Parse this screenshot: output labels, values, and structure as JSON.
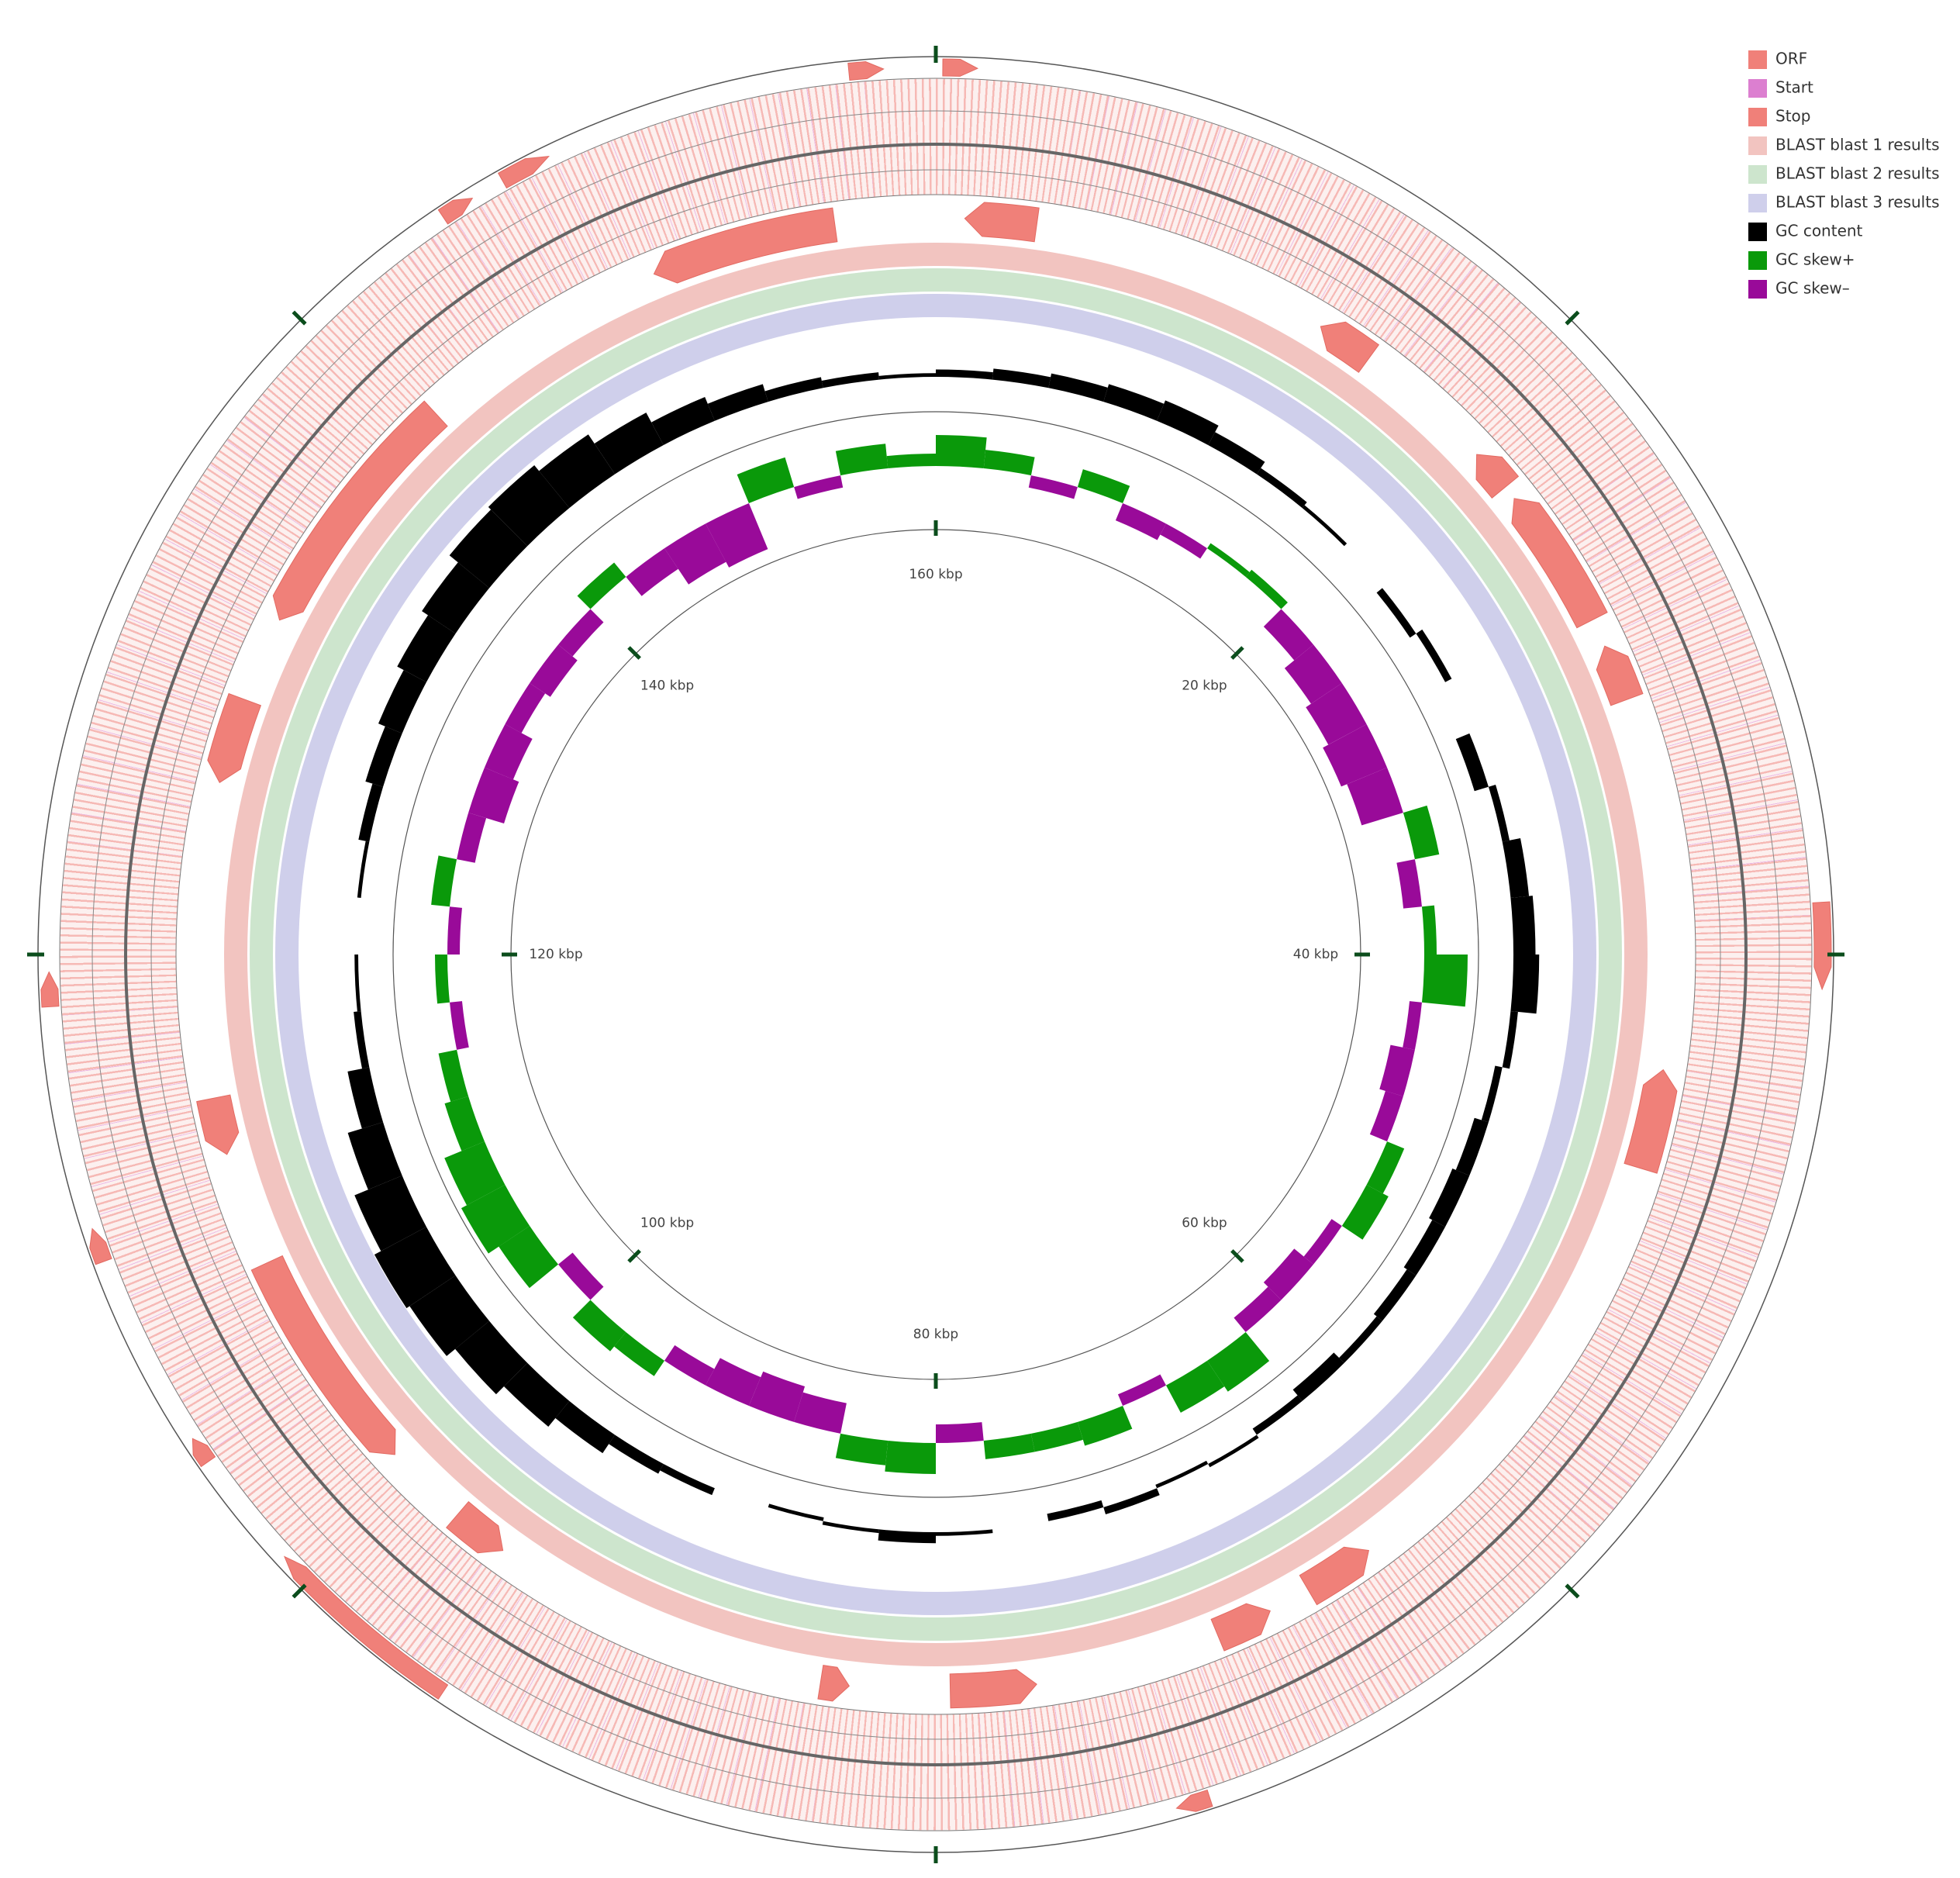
{
  "chart_data": {
    "type": "circular-genome",
    "xlim": [
      0,
      160
    ],
    "xticks": [
      {
        "value": 20,
        "label": "20 kbp"
      },
      {
        "value": 40,
        "label": "40 kbp"
      },
      {
        "value": 60,
        "label": "60 kbp"
      },
      {
        "value": 80,
        "label": "80 kbp"
      },
      {
        "value": 100,
        "label": "100 kbp"
      },
      {
        "value": 120,
        "label": "120 kbp"
      },
      {
        "value": 140,
        "label": "140 kbp"
      },
      {
        "value": 160,
        "label": "160 kbp"
      }
    ],
    "legend": [
      {
        "name": "ORF",
        "color": "#f08079"
      },
      {
        "name": "Start",
        "color": "#dc7fd0"
      },
      {
        "name": "Stop",
        "color": "#f08079"
      },
      {
        "name": "BLAST blast 1 results",
        "color": "#f2c4c0"
      },
      {
        "name": "BLAST blast 2 results",
        "color": "#cde5cd"
      },
      {
        "name": "BLAST blast 3 results",
        "color": "#cfcfeb"
      },
      {
        "name": "GC content",
        "color": "#000000"
      },
      {
        "name": "GC skew+",
        "color": "#0a990a"
      },
      {
        "name": "GC skew–",
        "color": "#990a99"
      }
    ],
    "x": [
      0,
      2.5,
      5,
      7.5,
      10,
      12.5,
      15,
      17.5,
      20,
      22.5,
      25,
      27.5,
      30,
      32.5,
      35,
      37.5,
      40,
      42.5,
      45,
      47.5,
      50,
      52.5,
      55,
      57.5,
      60,
      62.5,
      65,
      67.5,
      70,
      72.5,
      75,
      77.5,
      80,
      82.5,
      85,
      87.5,
      90,
      92.5,
      95,
      97.5,
      100,
      102.5,
      105,
      107.5,
      110,
      112.5,
      115,
      117.5,
      120,
      122.5,
      125,
      127.5,
      130,
      132.5,
      135,
      137.5,
      140,
      142.5,
      145,
      147.5,
      150,
      152.5,
      155,
      157.5
    ],
    "gc_content": [
      0.1,
      0.15,
      0.2,
      0.25,
      0.3,
      0.2,
      0.1,
      0.05,
      0,
      -0.1,
      0.1,
      0,
      -0.2,
      0.1,
      0.25,
      0.3,
      0.35,
      0.1,
      -0.1,
      -0.2,
      -0.25,
      -0.2,
      -0.15,
      -0.1,
      -0.2,
      -0.1,
      0.05,
      -0.05,
      0.1,
      -0.1,
      0,
      0.05,
      0.15,
      0.05,
      -0.05,
      0,
      0.1,
      0.15,
      0.3,
      0.45,
      0.6,
      0.75,
      0.8,
      0.7,
      0.5,
      0.3,
      0.1,
      0.05,
      0,
      0.05,
      0.15,
      0.25,
      0.35,
      0.45,
      0.55,
      0.7,
      0.75,
      0.65,
      0.5,
      0.35,
      0.25,
      0.15,
      0.1,
      0.05
    ],
    "gc_skew": [
      0.5,
      0.3,
      -0.2,
      0.3,
      -0.3,
      -0.2,
      0.1,
      0.15,
      -0.4,
      -0.6,
      -0.7,
      -0.8,
      -0.7,
      0.4,
      -0.3,
      0.2,
      0.7,
      -0.2,
      -0.4,
      -0.3,
      0.3,
      0.4,
      -0.2,
      -0.4,
      -0.3,
      0.6,
      0.5,
      -0.2,
      0.4,
      0.3,
      0.3,
      -0.3,
      0.5,
      0.4,
      -0.5,
      -0.6,
      -0.5,
      -0.3,
      0.3,
      0.4,
      -0.3,
      0.6,
      0.8,
      0.7,
      0.4,
      0.3,
      -0.2,
      0.2,
      -0.2,
      0.3,
      -0.3,
      -0.6,
      -0.5,
      -0.3,
      -0.4,
      -0.3,
      0.3,
      -0.4,
      -0.7,
      -0.8,
      0.5,
      -0.2,
      0.4,
      0.2
    ],
    "features": [
      {
        "start": 157.5,
        "end": 158.5,
        "strand": "+"
      },
      {
        "start": 0.2,
        "end": 1.2,
        "strand": "+"
      },
      {
        "start": 147,
        "end": 148.5,
        "strand": "+"
      },
      {
        "start": 145,
        "end": 146,
        "strand": "+"
      },
      {
        "start": 118.5,
        "end": 119.5,
        "strand": "+"
      },
      {
        "start": 111,
        "end": 112,
        "strand": "+"
      },
      {
        "start": 104.5,
        "end": 105.3,
        "strand": "+"
      },
      {
        "start": 38.5,
        "end": 41,
        "strand": "+"
      },
      {
        "start": 72,
        "end": 73,
        "strand": "+"
      },
      {
        "start": 95,
        "end": 101,
        "strand": "+"
      },
      {
        "start": 150,
        "end": 156.5,
        "strand": "-"
      },
      {
        "start": 1,
        "end": 3.5,
        "strand": "-"
      },
      {
        "start": 14,
        "end": 16,
        "strand": "-"
      },
      {
        "start": 21,
        "end": 22.5,
        "strand": "-"
      },
      {
        "start": 23,
        "end": 28,
        "strand": "-"
      },
      {
        "start": 29,
        "end": 31,
        "strand": "-"
      },
      {
        "start": 44,
        "end": 47.5,
        "strand": "-"
      },
      {
        "start": 64,
        "end": 66.5,
        "strand": "-"
      },
      {
        "start": 68,
        "end": 70,
        "strand": "-"
      },
      {
        "start": 76.5,
        "end": 79.5,
        "strand": "-"
      },
      {
        "start": 96,
        "end": 98,
        "strand": "-"
      },
      {
        "start": 101,
        "end": 109,
        "strand": "-"
      },
      {
        "start": 126,
        "end": 129,
        "strand": "-"
      },
      {
        "start": 132,
        "end": 141,
        "strand": "-"
      },
      {
        "start": 113,
        "end": 115,
        "strand": "-"
      },
      {
        "start": 83,
        "end": 84,
        "strand": "-"
      }
    ]
  }
}
